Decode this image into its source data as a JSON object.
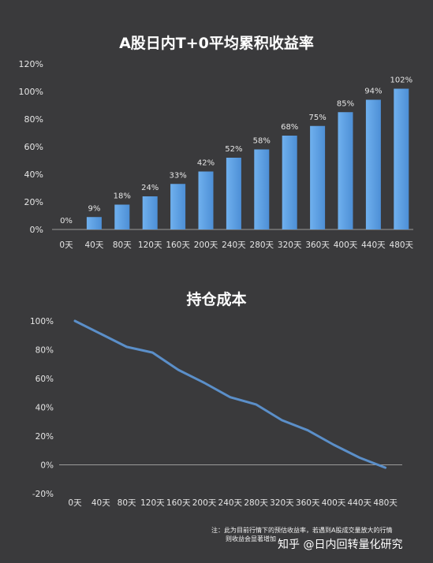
{
  "chart_data": [
    {
      "type": "bar",
      "title": "A股日内T+0平均累积收益率",
      "categories": [
        "0天",
        "40天",
        "80天",
        "120天",
        "160天",
        "200天",
        "240天",
        "280天",
        "320天",
        "360天",
        "400天",
        "440天",
        "480天"
      ],
      "values": [
        0,
        9,
        18,
        24,
        33,
        42,
        52,
        58,
        68,
        75,
        85,
        94,
        102
      ],
      "value_labels": [
        "0%",
        "9%",
        "18%",
        "24%",
        "33%",
        "42%",
        "52%",
        "58%",
        "68%",
        "75%",
        "85%",
        "94%",
        "102%"
      ],
      "y_ticks": [
        "0%",
        "20%",
        "40%",
        "60%",
        "80%",
        "100%",
        "120%"
      ],
      "ylim": [
        0,
        120
      ],
      "grid": false,
      "bar_color": "#4d8fd6"
    },
    {
      "type": "line",
      "title": "持仓成本",
      "categories": [
        "0天",
        "40天",
        "80天",
        "120天",
        "160天",
        "200天",
        "240天",
        "280天",
        "320天",
        "360天",
        "400天",
        "440天",
        "480天"
      ],
      "values": [
        100,
        91,
        82,
        78,
        66,
        57,
        47,
        42,
        31,
        24,
        14,
        5,
        -2
      ],
      "y_ticks": [
        "-20%",
        "0%",
        "20%",
        "40%",
        "60%",
        "80%",
        "100%"
      ],
      "ylim": [
        -20,
        100
      ],
      "grid": false,
      "line_color": "#5b8fc9"
    }
  ],
  "note": {
    "line1": "注：此为目前行情下的预估收益率，若遇到A股成交量放大的行情",
    "line2": "则收益会显著增加"
  },
  "watermark": "知乎 @日内回转量化研究"
}
